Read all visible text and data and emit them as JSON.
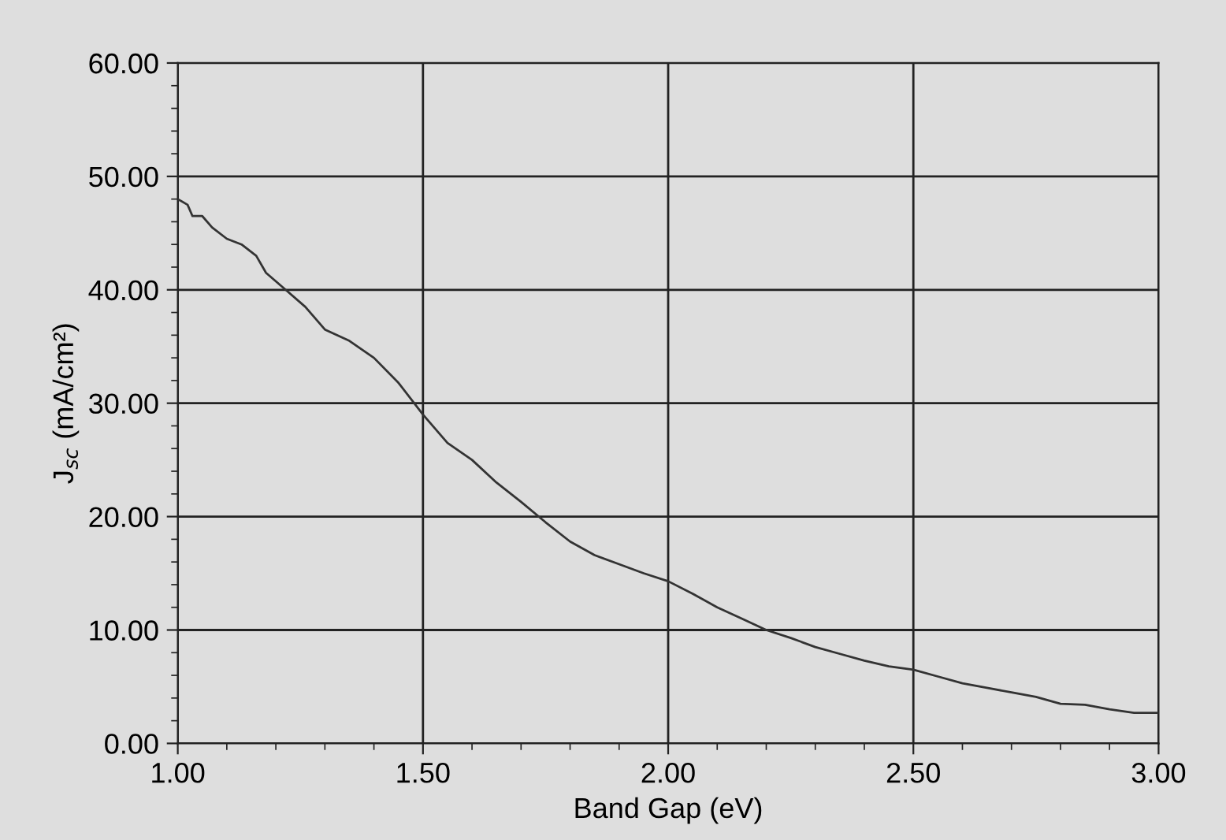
{
  "chart_data": {
    "type": "line",
    "xlabel": "Band Gap (eV)",
    "ylabel": "J$_{sc}$ (mA/cm²)",
    "xlim": [
      1.0,
      3.0
    ],
    "xticks": [
      {
        "value": 1.0,
        "label": "1.00"
      },
      {
        "value": 1.5,
        "label": "1.50"
      },
      {
        "value": 2.0,
        "label": "2.00"
      },
      {
        "value": 2.5,
        "label": "2.50"
      },
      {
        "value": 3.0,
        "label": "3.00"
      }
    ],
    "ylim": [
      0,
      60
    ],
    "yticks": [
      {
        "value": 0,
        "label": "0.00"
      },
      {
        "value": 10,
        "label": "10.00"
      },
      {
        "value": 20,
        "label": "20.00"
      },
      {
        "value": 30,
        "label": "30.00"
      },
      {
        "value": 40,
        "label": "40.00"
      },
      {
        "value": 50,
        "label": "50.00"
      },
      {
        "value": 60,
        "label": "60.00"
      }
    ],
    "grid": true,
    "marker": "none",
    "line_style": "solid",
    "x": [
      1.0,
      1.02,
      1.03,
      1.05,
      1.07,
      1.1,
      1.13,
      1.16,
      1.18,
      1.22,
      1.26,
      1.3,
      1.35,
      1.4,
      1.45,
      1.5,
      1.55,
      1.6,
      1.65,
      1.7,
      1.75,
      1.8,
      1.85,
      1.9,
      1.95,
      2.0,
      2.05,
      2.1,
      2.15,
      2.2,
      2.25,
      2.3,
      2.35,
      2.4,
      2.45,
      2.5,
      2.55,
      2.6,
      2.65,
      2.7,
      2.75,
      2.8,
      2.85,
      2.9,
      2.95,
      3.0
    ],
    "series": [
      {
        "color": "#333333",
        "values": [
          48,
          47.5,
          46.5,
          46.5,
          45.5,
          44.5,
          44,
          43,
          41.5,
          40,
          38.5,
          36.5,
          35.5,
          34,
          31.8,
          29,
          26.5,
          25,
          23,
          21.3,
          19.5,
          17.8,
          16.6,
          15.8,
          15,
          14.3,
          13.2,
          12,
          11,
          10,
          9.3,
          8.5,
          7.9,
          7.3,
          6.8,
          6.5,
          5.9,
          5.3,
          4.9,
          4.5,
          4.1,
          3.5,
          3.4,
          3.0,
          2.7,
          2.7
        ]
      }
    ]
  }
}
